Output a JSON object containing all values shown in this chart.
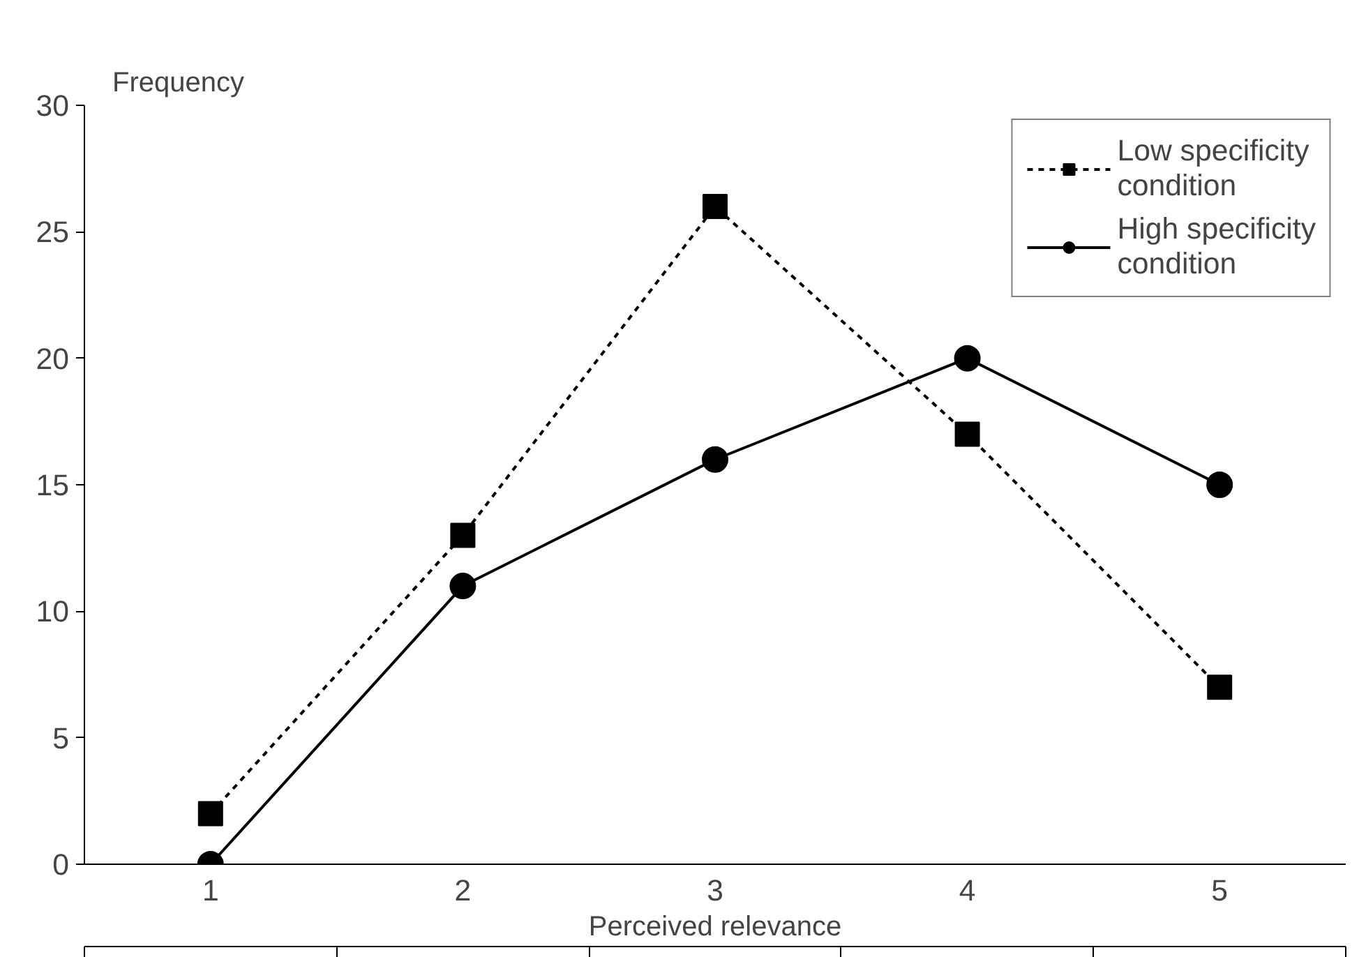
{
  "chart_data": {
    "type": "line",
    "xlabel": "Perceived relevance",
    "ylabel": "Frequency",
    "categories": [
      "1",
      "2",
      "3",
      "4",
      "5"
    ],
    "ylim": [
      0,
      30
    ],
    "yticks": [
      0,
      5,
      10,
      15,
      20,
      25,
      30
    ],
    "grid": false,
    "legend": "top right",
    "series": [
      {
        "name": "Low specificity condition",
        "color": "#000000",
        "values": [
          2,
          13,
          26,
          17,
          7
        ],
        "marker": "square",
        "line_style": "dotted"
      },
      {
        "name": "High specificity condition",
        "color": "#000000",
        "values": [
          0,
          11,
          16,
          20,
          15
        ],
        "marker": "circle",
        "line_style": "solid"
      }
    ]
  }
}
